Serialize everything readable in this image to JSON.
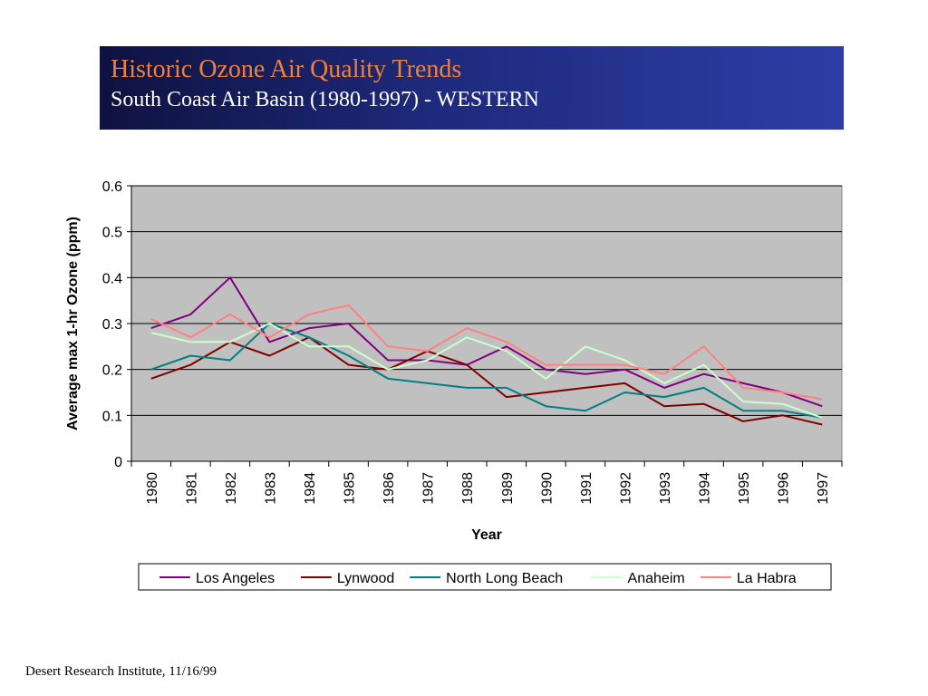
{
  "header": {
    "title": "Historic Ozone Air Quality Trends",
    "subtitle": "South Coast Air Basin (1980-1997) - WESTERN"
  },
  "footer": {
    "text": "Desert Research Institute, 11/16/99"
  },
  "chart_data": {
    "type": "line",
    "title": "",
    "xlabel": "Year",
    "ylabel": "Average max 1-hr Ozone (ppm)",
    "ylim": [
      0,
      0.6
    ],
    "yticks": [
      "0",
      "0.1",
      "0.2",
      "0.3",
      "0.4",
      "0.5",
      "0.6"
    ],
    "grid": "horizontal",
    "plot_background": "#c0c0c0",
    "legend_position": "bottom",
    "categories": [
      "1980",
      "1981",
      "1982",
      "1983",
      "1984",
      "1985",
      "1986",
      "1987",
      "1988",
      "1989",
      "1990",
      "1991",
      "1992",
      "1993",
      "1994",
      "1995",
      "1996",
      "1997"
    ],
    "series": [
      {
        "name": "Los Angeles",
        "color": "#800080",
        "values": [
          0.29,
          0.32,
          0.4,
          0.26,
          0.29,
          0.3,
          0.22,
          0.22,
          0.21,
          0.25,
          0.2,
          0.19,
          0.2,
          0.16,
          0.19,
          0.17,
          0.15,
          0.12
        ]
      },
      {
        "name": "Lynwood",
        "color": "#800000",
        "values": [
          0.18,
          0.21,
          0.26,
          0.23,
          0.27,
          0.21,
          0.2,
          0.24,
          0.21,
          0.14,
          0.15,
          0.16,
          0.17,
          0.12,
          0.125,
          0.087,
          0.1,
          0.08
        ]
      },
      {
        "name": "North Long Beach",
        "color": "#008080",
        "values": [
          0.2,
          0.23,
          0.22,
          0.3,
          0.27,
          0.23,
          0.18,
          0.17,
          0.16,
          0.16,
          0.12,
          0.11,
          0.15,
          0.14,
          0.16,
          0.11,
          0.11,
          0.095
        ]
      },
      {
        "name": "Anaheim",
        "color": "#ccffcc",
        "values": [
          0.28,
          0.26,
          0.26,
          0.3,
          0.25,
          0.25,
          0.2,
          0.22,
          0.27,
          0.24,
          0.18,
          0.25,
          0.22,
          0.17,
          0.21,
          0.13,
          0.125,
          0.095
        ]
      },
      {
        "name": "La Habra",
        "color": "#ff8080",
        "values": [
          0.31,
          0.27,
          0.32,
          0.27,
          0.32,
          0.34,
          0.25,
          0.24,
          0.29,
          0.26,
          0.21,
          0.21,
          0.21,
          0.19,
          0.25,
          0.16,
          0.15,
          0.135
        ]
      }
    ]
  }
}
